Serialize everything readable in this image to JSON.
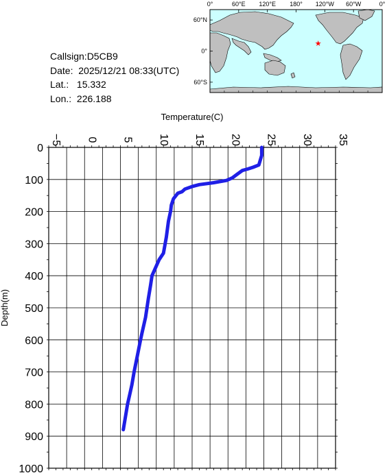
{
  "info": {
    "callsign": "Callsign:D5CB9",
    "date": "Date:  2025/12/21 08:33(UTC)",
    "lat": "Lat.:   15.332",
    "lon": "Lon.:  226.188"
  },
  "map": {
    "lon_labels": [
      "0°",
      "60°E",
      "120°E",
      "180°",
      "120°W",
      "60°W",
      "0°"
    ],
    "lat_labels": [
      "60°N",
      "0°",
      "60°S"
    ],
    "ocean_color": "#ccffff",
    "land_color": "#bfbfbf",
    "marker_color": "#ff0000",
    "marker_lon": 226.188,
    "marker_lat": 15.332
  },
  "chart_data": {
    "type": "line",
    "xlabel": "Temperature(C)",
    "ylabel": "Depth(m)",
    "xlim": [
      -5,
      35
    ],
    "ylim": [
      0,
      1000
    ],
    "y_inverted": true,
    "x_ticks": [
      -5,
      0,
      5,
      10,
      15,
      20,
      25,
      30,
      35
    ],
    "y_ticks": [
      0,
      100,
      200,
      300,
      400,
      500,
      600,
      700,
      800,
      900,
      1000
    ],
    "grid": true,
    "line_color": "#1f1fe6",
    "series": [
      {
        "x": [
          24.7,
          24.7,
          24.5,
          24.3,
          23.5,
          22.8,
          22.0,
          21.2,
          20.6,
          19.8,
          18.0,
          16.0,
          15.0,
          14.0,
          13.6,
          13.0,
          12.4,
          12.1,
          12.0,
          11.7,
          11.4,
          11.0,
          10.4,
          9.8,
          9.4,
          9.2,
          8.9,
          8.5,
          8.0,
          7.8,
          7.4,
          6.9,
          6.6,
          6.3,
          6.0,
          5.7,
          5.4
        ],
        "y": [
          0,
          25,
          40,
          55,
          62,
          67,
          72,
          85,
          95,
          103,
          110,
          116,
          122,
          130,
          138,
          143,
          160,
          180,
          198,
          230,
          280,
          330,
          350,
          380,
          400,
          430,
          470,
          530,
          580,
          600,
          645,
          700,
          740,
          770,
          800,
          840,
          880
        ]
      }
    ]
  }
}
